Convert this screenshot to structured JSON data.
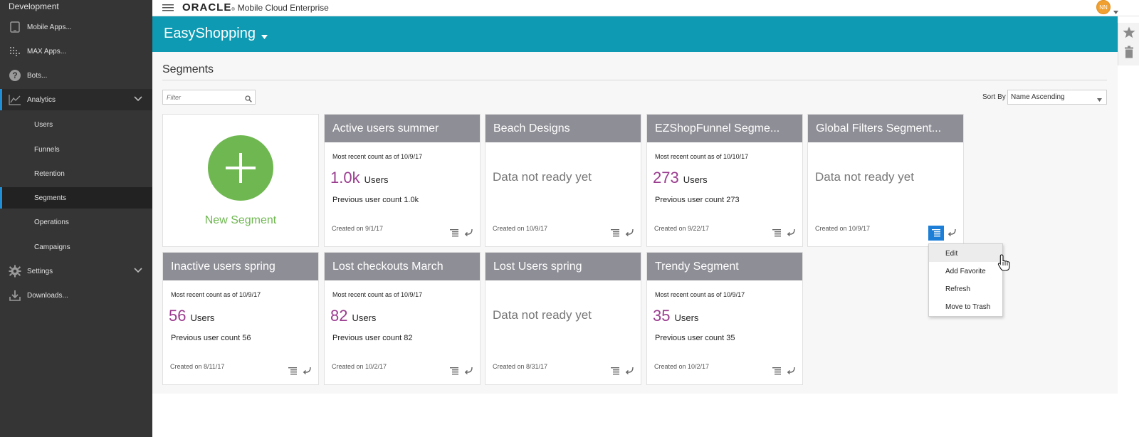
{
  "sidebar": {
    "environment": "Development",
    "items": [
      {
        "label": "Mobile Apps..."
      },
      {
        "label": "MAX Apps..."
      },
      {
        "label": "Bots..."
      },
      {
        "label": "Analytics"
      },
      {
        "label": "Settings"
      },
      {
        "label": "Downloads..."
      }
    ],
    "analytics_sub": [
      {
        "label": "Users"
      },
      {
        "label": "Funnels"
      },
      {
        "label": "Retention"
      },
      {
        "label": "Segments"
      },
      {
        "label": "Operations"
      },
      {
        "label": "Campaigns"
      }
    ]
  },
  "topbar": {
    "brand": "ORACLE",
    "brand_mark": "®",
    "product": "Mobile Cloud Enterprise",
    "avatar_initials": "NN"
  },
  "app": {
    "name": "EasyShopping"
  },
  "page": {
    "title": "Segments",
    "filter_placeholder": "Filter",
    "sort_by_label": "Sort By",
    "sort_value": "Name Ascending"
  },
  "new_segment": {
    "label": "New Segment"
  },
  "cards": [
    {
      "title": "Active users summer",
      "recent": "Most recent count as of 10/9/17",
      "count": "1.0k",
      "unit": "Users",
      "prev": "Previous user count 1.0k",
      "created": "Created on 9/1/17"
    },
    {
      "title": "Beach Designs",
      "status": "Data not ready yet",
      "created": "Created on 10/9/17"
    },
    {
      "title": "EZShopFunnel Segme...",
      "recent": "Most recent count as of 10/10/17",
      "count": "273",
      "unit": "Users",
      "prev": "Previous user count 273",
      "created": "Created on 9/22/17"
    },
    {
      "title": "Global Filters Segment...",
      "status": "Data not ready yet",
      "created": "Created on 10/9/17"
    },
    {
      "title": "Inactive users spring",
      "recent": "Most recent count as of 10/9/17",
      "count": "56",
      "unit": "Users",
      "prev": "Previous user count 56",
      "created": "Created on 8/11/17"
    },
    {
      "title": "Lost checkouts March",
      "recent": "Most recent count as of 10/9/17",
      "count": "82",
      "unit": "Users",
      "prev": "Previous user count 82",
      "created": "Created on 10/2/17"
    },
    {
      "title": "Lost Users spring",
      "status": "Data not ready yet",
      "created": "Created on 8/31/17"
    },
    {
      "title": "Trendy Segment",
      "recent": "Most recent count as of 10/9/17",
      "count": "35",
      "unit": "Users",
      "prev": "Previous user count 35",
      "created": "Created on 10/2/17"
    }
  ],
  "context_menu": {
    "items": [
      {
        "label": "Edit"
      },
      {
        "label": "Add Favorite"
      },
      {
        "label": "Refresh"
      },
      {
        "label": "Move to Trash"
      }
    ]
  },
  "colors": {
    "sidebar_bg": "#353535",
    "banner": "#0d9ab2",
    "card_header": "#8e8e96",
    "count": "#9a3c8f",
    "new_segment": "#6fb851",
    "active_accent": "#1f8fd8"
  }
}
